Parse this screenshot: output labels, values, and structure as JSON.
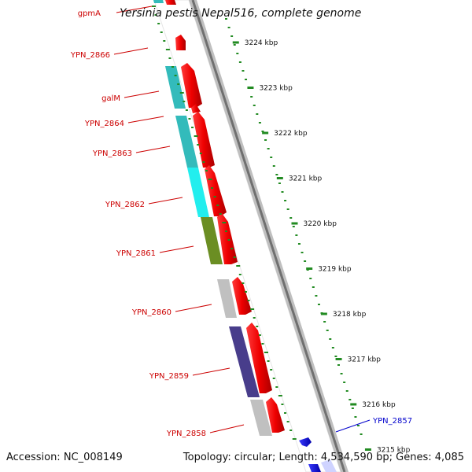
{
  "title": "Yersinia pestis Nepal516, complete genome",
  "accession": "Accession: NC_008149",
  "topology": "Topology: circular; Length: 4,534,590 bp; Genes: 4,085",
  "colors": {
    "reverse_label": "#cc0000",
    "forward_label": "#0000cc",
    "tick": "#228b22",
    "backbone": "#808080"
  },
  "scale_ticks": [
    "3224 kbp",
    "3223 kbp",
    "3222 kbp",
    "3221 kbp",
    "3220 kbp",
    "3219 kbp",
    "3218 kbp",
    "3217 kbp",
    "3216 kbp",
    "3215 kbp"
  ],
  "genes": [
    {
      "label": "gpmA",
      "strand": "reverse"
    },
    {
      "label": "YPN_2866",
      "strand": "reverse"
    },
    {
      "label": "galM",
      "strand": "reverse"
    },
    {
      "label": "YPN_2864",
      "strand": "reverse"
    },
    {
      "label": "YPN_2863",
      "strand": "reverse"
    },
    {
      "label": "YPN_2862",
      "strand": "reverse"
    },
    {
      "label": "YPN_2861",
      "strand": "reverse"
    },
    {
      "label": "YPN_2860",
      "strand": "reverse"
    },
    {
      "label": "YPN_2859",
      "strand": "reverse"
    },
    {
      "label": "YPN_2858",
      "strand": "reverse"
    },
    {
      "label": "YPN_2857",
      "strand": "forward"
    }
  ]
}
